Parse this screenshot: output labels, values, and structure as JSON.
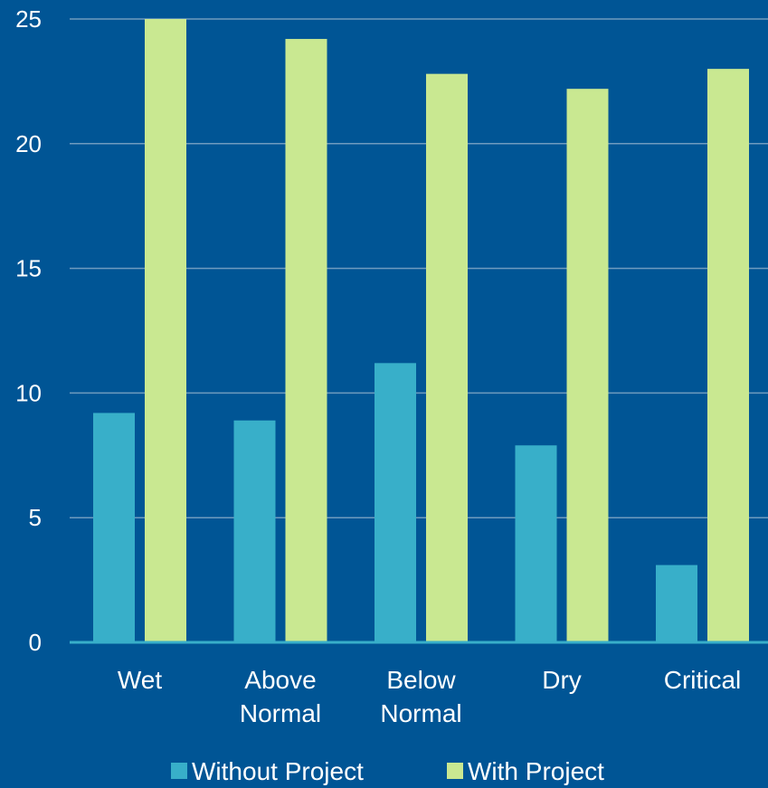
{
  "chart_data": {
    "type": "bar",
    "title": "",
    "xlabel": "",
    "ylabel": "",
    "categories": [
      [
        "Wet"
      ],
      [
        "Above",
        "Normal"
      ],
      [
        "Below",
        "Normal"
      ],
      [
        "Dry"
      ],
      [
        "Critical"
      ]
    ],
    "series": [
      {
        "name": "Without Project",
        "values": [
          9.2,
          8.9,
          11.2,
          7.9,
          3.1
        ],
        "color": "#38afc9"
      },
      {
        "name": "With Project",
        "values": [
          25.0,
          24.2,
          22.8,
          22.2,
          23.0
        ],
        "color": "#c9e891"
      }
    ],
    "ylim": [
      0,
      25
    ],
    "yticks": [
      0,
      5,
      10,
      15,
      20,
      25
    ],
    "grid": true,
    "legend": "bottom",
    "colors": {
      "background": "#005595",
      "gridline": "#6f9bbf",
      "axis": "#38afc9",
      "text": "#ffffff"
    }
  }
}
